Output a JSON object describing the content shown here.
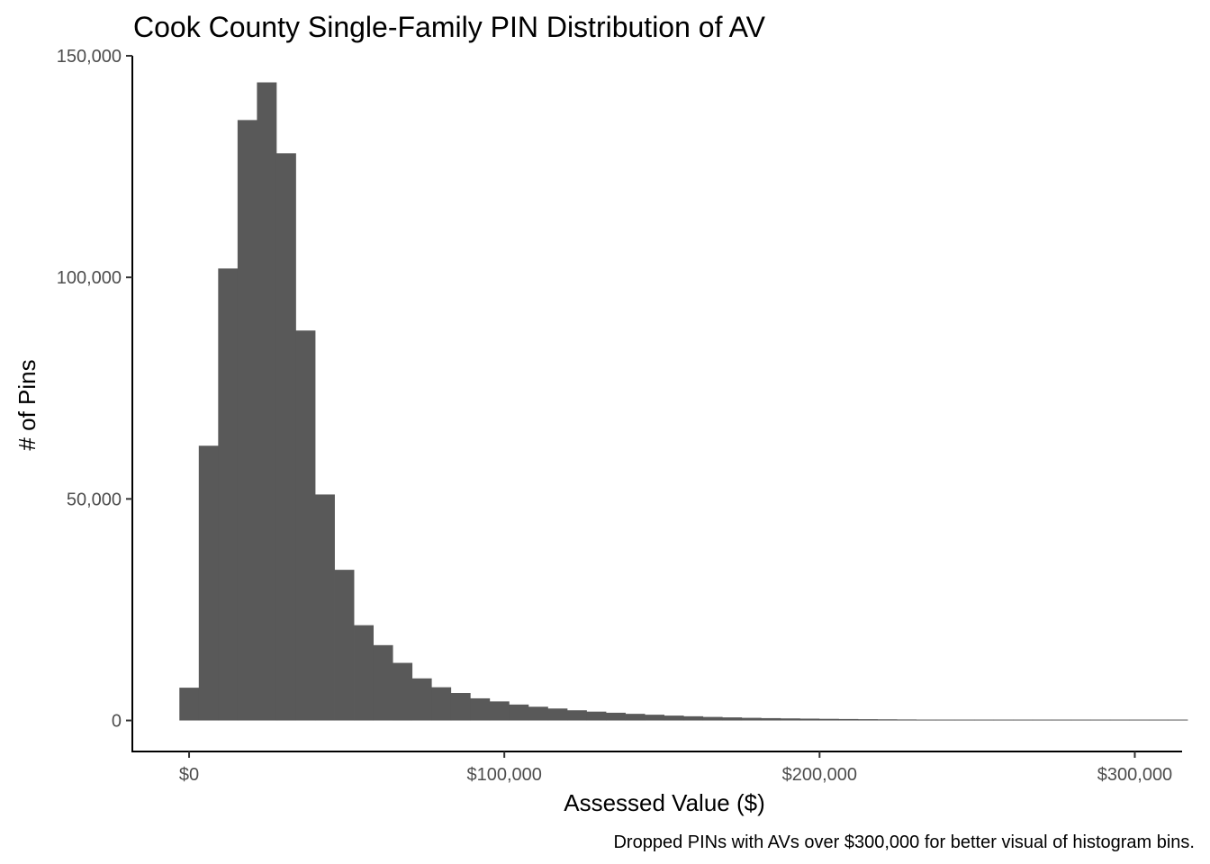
{
  "chart_data": {
    "type": "bar",
    "title": "Cook County Single-Family PIN Distribution of AV",
    "xlabel": "Assessed Value ($)",
    "ylabel": "# of Pins",
    "caption": "Dropped PINs with AVs over $300,000 for better visual of histogram bins.",
    "xlim": [
      -18000,
      315000
    ],
    "ylim": [
      -7000,
      150000
    ],
    "x_ticks": [
      {
        "value": 0,
        "label": "$0"
      },
      {
        "value": 100000,
        "label": "$100,000"
      },
      {
        "value": 200000,
        "label": "$200,000"
      },
      {
        "value": 300000,
        "label": "$300,000"
      }
    ],
    "y_ticks": [
      {
        "value": 0,
        "label": "0"
      },
      {
        "value": 50000,
        "label": "50,000"
      },
      {
        "value": 100000,
        "label": "100,000"
      },
      {
        "value": 150000,
        "label": "150,000"
      }
    ],
    "bin_width": 6150,
    "bin_start": -3075,
    "values": [
      7400,
      62000,
      102000,
      135500,
      144000,
      128000,
      88000,
      51000,
      34000,
      21500,
      17000,
      13000,
      9500,
      7500,
      6200,
      5000,
      4300,
      3600,
      3100,
      2700,
      2300,
      2000,
      1750,
      1500,
      1300,
      1100,
      950,
      800,
      700,
      600,
      530,
      470,
      420,
      370,
      330,
      290,
      260,
      230,
      200,
      180,
      160,
      140,
      125,
      110,
      100,
      90,
      80,
      70,
      65,
      60,
      55,
      50
    ],
    "bar_color": "#595959"
  }
}
